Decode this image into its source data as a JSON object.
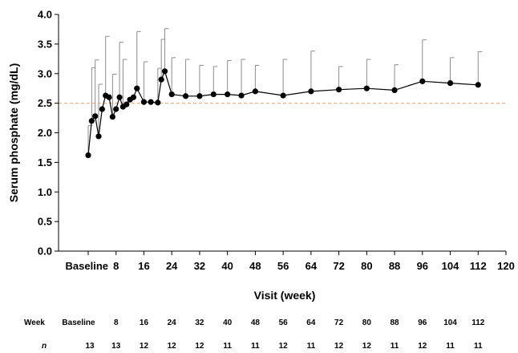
{
  "chart_data": {
    "type": "line",
    "title": "",
    "xlabel": "Visit (week)",
    "ylabel": "Serum phosphate (mg/dL)",
    "xlim": [
      0,
      120
    ],
    "ylim": [
      0.0,
      4.0
    ],
    "ytick_labels": [
      "0.0",
      "0.5",
      "1.0",
      "1.5",
      "2.0",
      "2.5",
      "3.0",
      "3.5",
      "4.0"
    ],
    "xtick_labels": [
      {
        "x": 0,
        "label": "Baseline"
      },
      {
        "x": 8,
        "label": "8"
      },
      {
        "x": 16,
        "label": "16"
      },
      {
        "x": 24,
        "label": "24"
      },
      {
        "x": 32,
        "label": "32"
      },
      {
        "x": 40,
        "label": "40"
      },
      {
        "x": 48,
        "label": "48"
      },
      {
        "x": 56,
        "label": "56"
      },
      {
        "x": 64,
        "label": "64"
      },
      {
        "x": 72,
        "label": "72"
      },
      {
        "x": 80,
        "label": "80"
      },
      {
        "x": 88,
        "label": "88"
      },
      {
        "x": 96,
        "label": "96"
      },
      {
        "x": 104,
        "label": "104"
      },
      {
        "x": 112,
        "label": "112"
      },
      {
        "x": 120,
        "label": "120"
      }
    ],
    "reference_line": {
      "y": 2.5,
      "color": "#f4b183",
      "style": "dashed"
    },
    "series": [
      {
        "x": [
          0,
          1,
          2,
          3,
          4,
          5,
          6,
          7,
          8,
          9,
          10,
          11,
          12,
          13,
          14,
          16,
          18,
          20,
          21,
          22,
          24,
          28,
          32,
          36,
          40,
          44,
          48,
          56,
          64,
          72,
          80,
          88,
          96,
          104,
          112
        ],
        "y": [
          1.62,
          2.2,
          2.28,
          1.94,
          2.4,
          2.63,
          2.6,
          2.27,
          2.4,
          2.6,
          2.44,
          2.48,
          2.56,
          2.6,
          2.75,
          2.52,
          2.52,
          2.51,
          2.9,
          3.04,
          2.65,
          2.62,
          2.62,
          2.65,
          2.65,
          2.63,
          2.7,
          2.63,
          2.7,
          2.73,
          2.75,
          2.72,
          2.87,
          2.84,
          2.81
        ],
        "error": [
          0.5,
          0.9,
          0.95,
          0.88,
          0.0,
          1.0,
          0.0,
          0.72,
          0.0,
          0.93,
          0.8,
          0.0,
          0.0,
          0.0,
          0.96,
          0.68,
          0.0,
          0.58,
          0.68,
          0.72,
          0.62,
          0.62,
          0.52,
          0.47,
          0.57,
          0.61,
          0.44,
          0.61,
          0.68,
          0.39,
          0.49,
          0.43,
          0.7,
          0.43,
          0.56
        ]
      }
    ]
  },
  "table": {
    "week_label": "Week",
    "n_label": "n",
    "columns": [
      {
        "x": 0,
        "week": "Baseline",
        "n": "13"
      },
      {
        "x": 8,
        "week": "8",
        "n": "13"
      },
      {
        "x": 16,
        "week": "16",
        "n": "12"
      },
      {
        "x": 24,
        "week": "24",
        "n": "12"
      },
      {
        "x": 32,
        "week": "32",
        "n": "12"
      },
      {
        "x": 40,
        "week": "40",
        "n": "11"
      },
      {
        "x": 48,
        "week": "48",
        "n": "11"
      },
      {
        "x": 56,
        "week": "56",
        "n": "12"
      },
      {
        "x": 64,
        "week": "64",
        "n": "11"
      },
      {
        "x": 72,
        "week": "72",
        "n": "12"
      },
      {
        "x": 80,
        "week": "80",
        "n": "12"
      },
      {
        "x": 88,
        "week": "88",
        "n": "11"
      },
      {
        "x": 96,
        "week": "96",
        "n": "12"
      },
      {
        "x": 104,
        "week": "104",
        "n": "11"
      },
      {
        "x": 112,
        "week": "112",
        "n": "11"
      }
    ]
  }
}
